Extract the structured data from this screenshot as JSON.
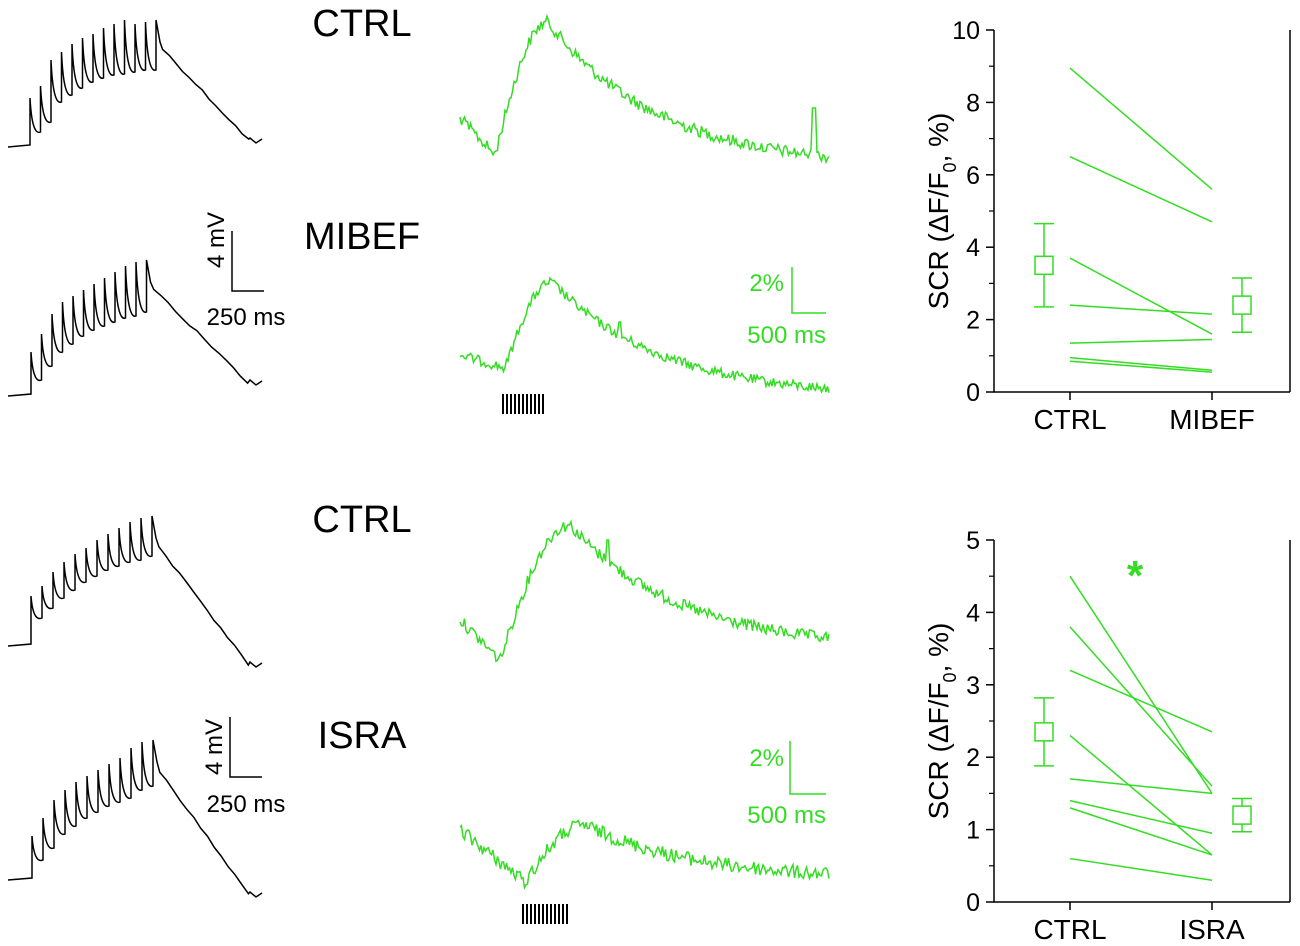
{
  "colors": {
    "green": "#33dd22",
    "black": "#000000"
  },
  "panels": {
    "top": {
      "ctrl_label": "CTRL",
      "drug_label": "MIBEF"
    },
    "bottom": {
      "ctrl_label": "CTRL",
      "drug_label": "ISRA"
    }
  },
  "scalebars": {
    "top_mv": "4 mV",
    "top_ms": "250 ms",
    "top_pct": "2%",
    "top_ms_green": "500 ms",
    "bottom_mv": "4 mV",
    "bottom_ms": "250 ms",
    "bottom_pct": "2%",
    "bottom_ms_green": "500 ms"
  },
  "chart_data": [
    {
      "type": "line",
      "title": "",
      "xlabel": "",
      "ylabel": "SCR (ΔF/F0, %)",
      "ylabel_main": "SCR (ΔF/F",
      "ylabel_sub": "0",
      "ylabel_tail": ", %)",
      "categories": [
        "CTRL",
        "MIBEF"
      ],
      "ylim": [
        0,
        10
      ],
      "yticks": [
        0,
        2,
        4,
        6,
        8,
        10
      ],
      "paired_lines": [
        [
          8.95,
          5.6
        ],
        [
          6.5,
          4.7
        ],
        [
          3.7,
          1.6
        ],
        [
          2.4,
          2.15
        ],
        [
          1.35,
          1.45
        ],
        [
          0.95,
          0.6
        ],
        [
          0.85,
          0.55
        ]
      ],
      "means": [
        3.5,
        2.4
      ],
      "error": [
        1.15,
        0.75
      ],
      "significance": ""
    },
    {
      "type": "line",
      "title": "",
      "xlabel": "",
      "ylabel": "SCR (ΔF/F0, %)",
      "ylabel_main": "SCR (ΔF/F",
      "ylabel_sub": "0",
      "ylabel_tail": ", %)",
      "categories": [
        "CTRL",
        "ISRA"
      ],
      "ylim": [
        0,
        5
      ],
      "yticks": [
        0,
        1,
        2,
        3,
        4,
        5
      ],
      "paired_lines": [
        [
          4.5,
          1.5
        ],
        [
          3.8,
          1.6
        ],
        [
          3.2,
          2.35
        ],
        [
          2.3,
          0.65
        ],
        [
          1.7,
          1.5
        ],
        [
          1.4,
          0.95
        ],
        [
          1.3,
          0.65
        ],
        [
          0.6,
          0.3
        ]
      ],
      "means": [
        2.35,
        1.2
      ],
      "error": [
        0.47,
        0.23
      ],
      "significance": "*"
    }
  ]
}
